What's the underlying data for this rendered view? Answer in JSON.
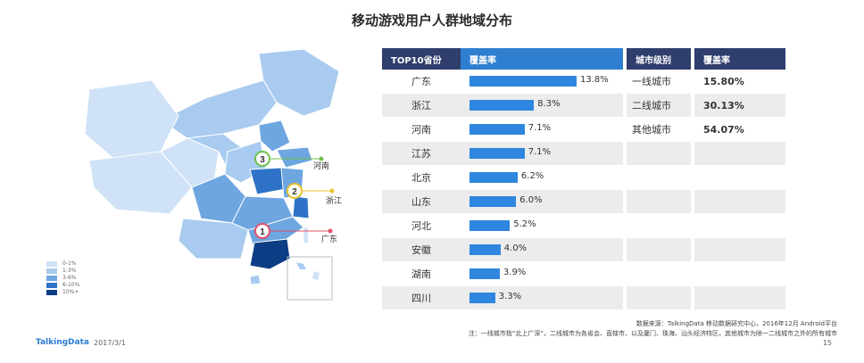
{
  "title": "移动游戏用户人群地域分布",
  "colors": {
    "header_dark": "#2f3e6c",
    "header_blue": "#2f7fd0",
    "bar": "#2e86de",
    "map_levels": [
      "#cfe2f7",
      "#a9cbef",
      "#6ea6e0",
      "#2e73c7",
      "#0d3d85"
    ]
  },
  "map": {
    "legend": [
      "0-1%",
      "1-3%",
      "3-6%",
      "6-10%",
      "10%+"
    ],
    "markers": [
      {
        "rank": "1",
        "province": "广东",
        "color": "#e0506a"
      },
      {
        "rank": "2",
        "province": "浙江",
        "color": "#e7c32b"
      },
      {
        "rank": "3",
        "province": "河南",
        "color": "#6cc24a"
      }
    ]
  },
  "table": {
    "headers": {
      "province": "TOP10省份",
      "coverage": "覆盖率",
      "city_level": "城市级别",
      "city_coverage": "覆盖率"
    },
    "city_rows": [
      {
        "level": "一线城市",
        "rate": "15.80%"
      },
      {
        "level": "二线城市",
        "rate": "30.13%"
      },
      {
        "level": "其他城市",
        "rate": "54.07%"
      }
    ]
  },
  "chart_data": {
    "type": "bar",
    "title": "",
    "categories": [
      "广东",
      "浙江",
      "河南",
      "江苏",
      "北京",
      "山东",
      "河北",
      "安徽",
      "湖南",
      "四川"
    ],
    "values": [
      13.8,
      8.3,
      7.1,
      7.1,
      6.2,
      6.0,
      5.2,
      4.0,
      3.9,
      3.3
    ],
    "value_labels": [
      "13.8%",
      "8.3%",
      "7.1%",
      "7.1%",
      "6.2%",
      "6.0%",
      "5.2%",
      "4.0%",
      "3.9%",
      "3.3%"
    ],
    "xlim": [
      0,
      13.8
    ],
    "orientation": "horizontal"
  },
  "footer": {
    "source": "数据来源：TalkingData 移动数据研究中心，2016年12月 Android平台",
    "note": "注：一线城市指“北上广深”，二线城市为各省会、直辖市、以及厦门、珠海、汕头经济特区，其他城市为除一二线城市之外的所有城市",
    "logo": "TalkingData",
    "date": "2017/3/1",
    "page": "15"
  }
}
